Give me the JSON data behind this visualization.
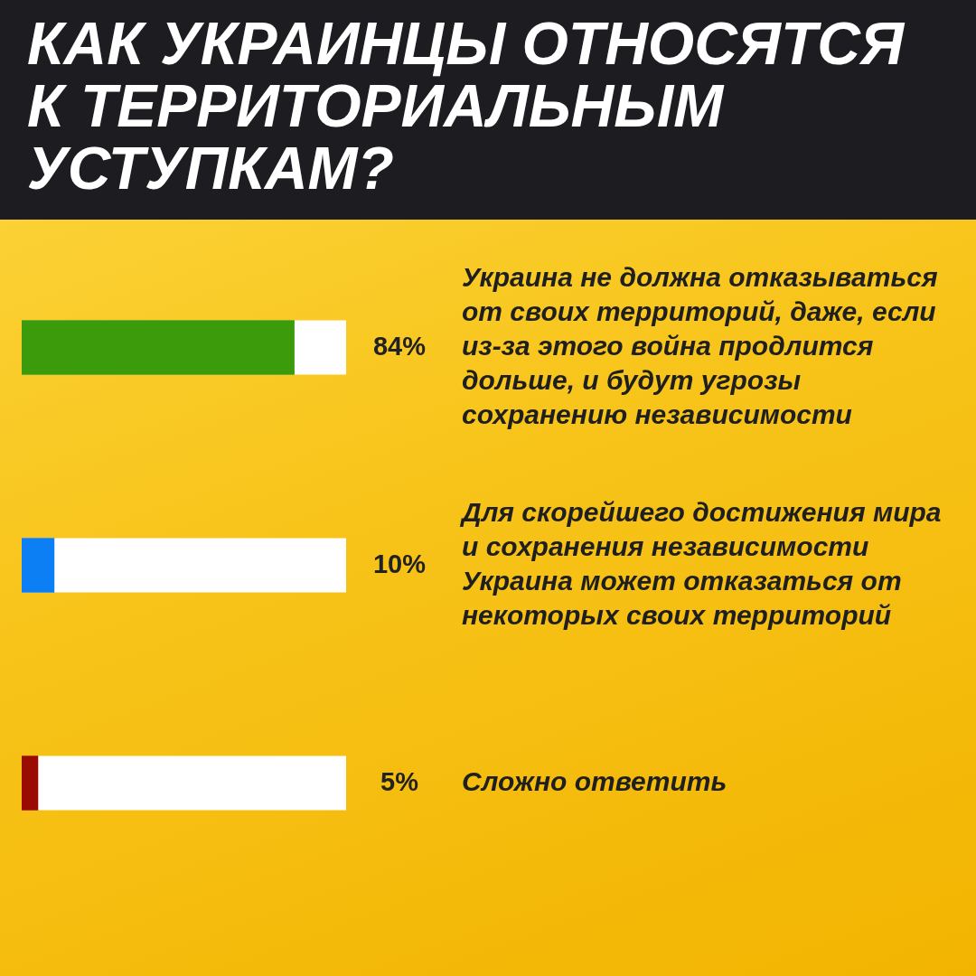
{
  "chart_data": {
    "type": "bar",
    "orientation": "horizontal",
    "title": "КАК УКРАИНЦЫ ОТНОСЯТСЯ К ТЕРРИТОРИАЛЬНЫМ УСТУПКАМ?",
    "categories": [
      "Украина не должна отказываться от своих территорий, даже, если из-за этого война продлится дольше, и будут угрозы сохранению независимости",
      "Для скорейшего достижения мира и сохранения независимости Украина может отказаться от некоторых своих территорий",
      "Сложно ответить"
    ],
    "values": [
      84,
      10,
      5
    ],
    "colors": [
      "#3c9b0a",
      "#0d7ff5",
      "#9a0c02"
    ],
    "xlim": [
      0,
      100
    ],
    "value_labels": [
      "84%",
      "10%",
      "5%"
    ],
    "tick_labels": "y"
  }
}
